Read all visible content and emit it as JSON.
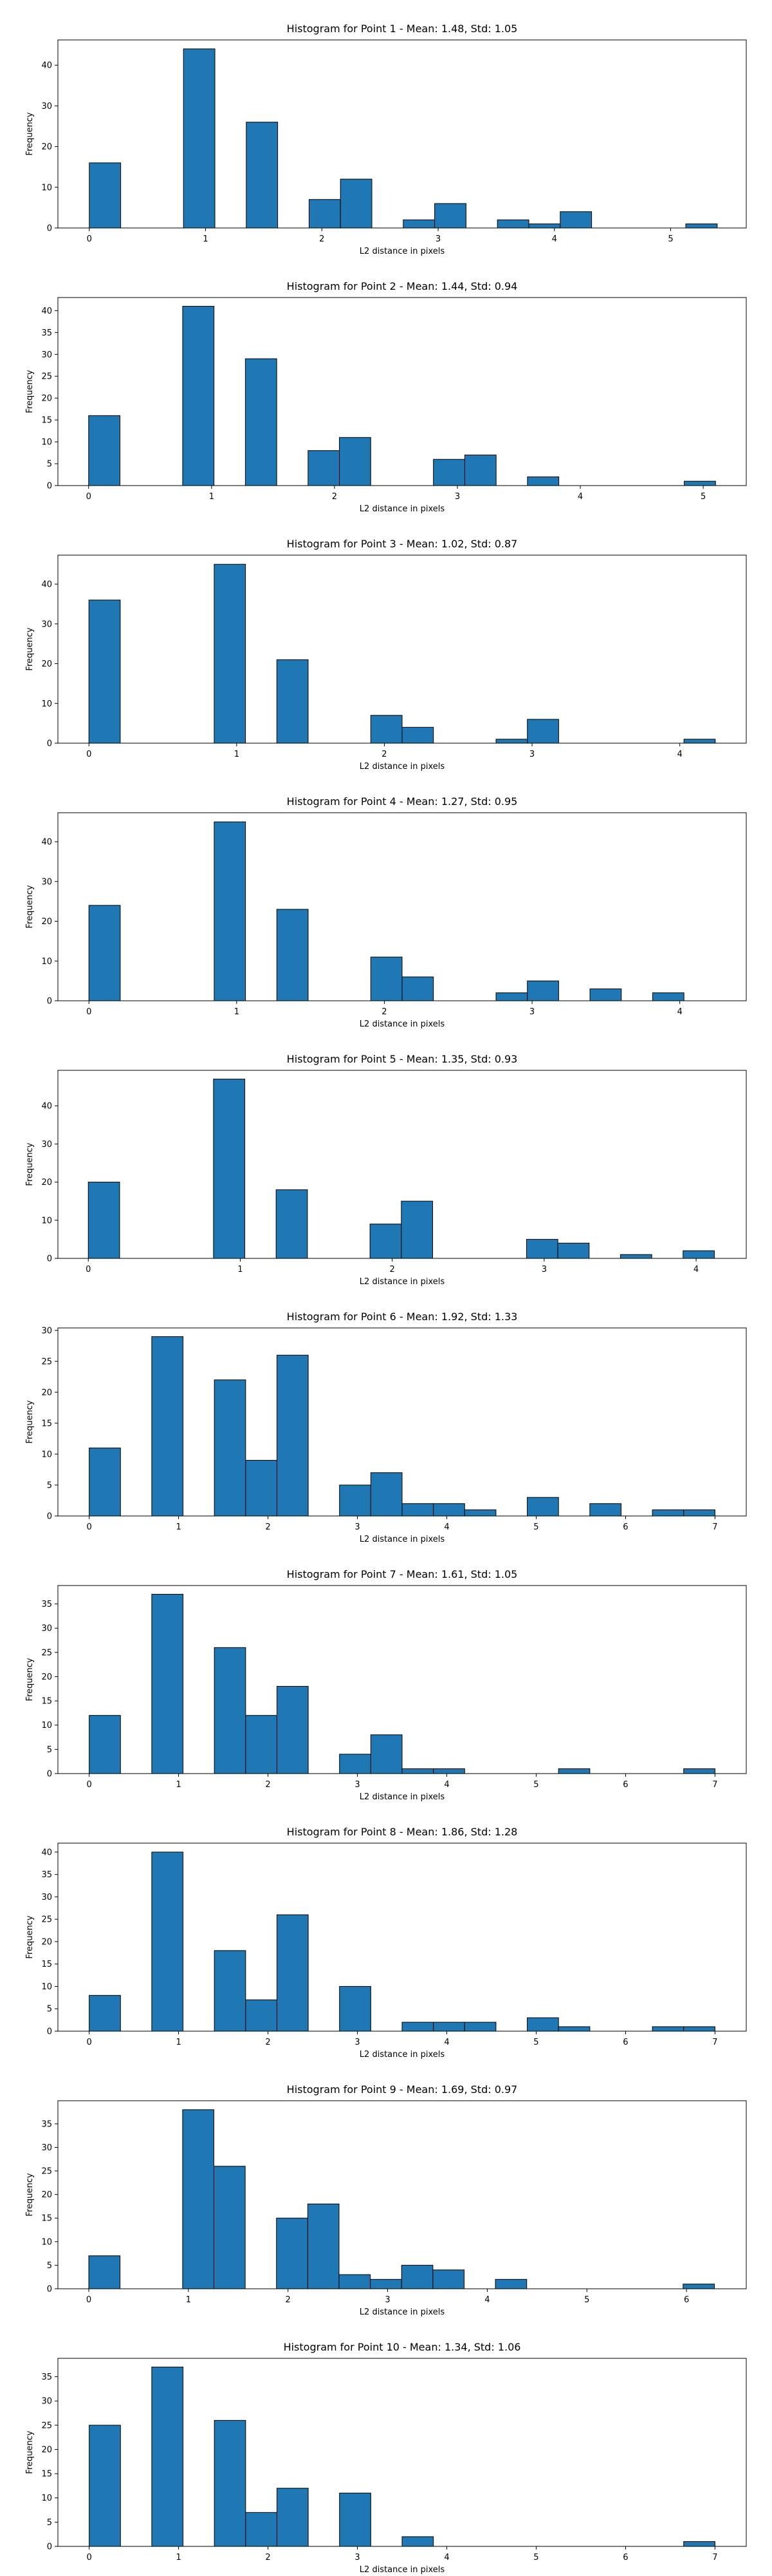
{
  "chart_data": [
    {
      "type": "bar",
      "title": "Histogram for Point 1 - Mean: 1.48, Std: 1.05",
      "xlabel": "L2 distance in pixels",
      "ylabel": "Frequency",
      "xlim": [
        -0.27,
        5.65
      ],
      "ylim": [
        0,
        46.2
      ],
      "xticks": [
        0,
        1,
        2,
        3,
        4,
        5
      ],
      "yticks": [
        0,
        10,
        20,
        30,
        40
      ],
      "grid": false,
      "bin_width": 0.27,
      "bins": [
        {
          "x0": 0.0,
          "count": 16
        },
        {
          "x0": 0.81,
          "count": 44
        },
        {
          "x0": 1.35,
          "count": 26
        },
        {
          "x0": 1.89,
          "count": 7
        },
        {
          "x0": 2.16,
          "count": 12
        },
        {
          "x0": 2.7,
          "count": 2
        },
        {
          "x0": 2.97,
          "count": 6
        },
        {
          "x0": 3.51,
          "count": 2
        },
        {
          "x0": 3.78,
          "count": 1
        },
        {
          "x0": 4.05,
          "count": 4
        },
        {
          "x0": 5.13,
          "count": 1
        }
      ]
    },
    {
      "type": "bar",
      "title": "Histogram for Point 2 - Mean: 1.44, Std: 0.94",
      "xlabel": "L2 distance in pixels",
      "ylabel": "Frequency",
      "xlim": [
        -0.25,
        5.35
      ],
      "ylim": [
        0,
        43
      ],
      "xticks": [
        0,
        1,
        2,
        3,
        4,
        5
      ],
      "yticks": [
        0,
        5,
        10,
        15,
        20,
        25,
        30,
        35,
        40
      ],
      "grid": false,
      "bin_width": 0.255,
      "bins": [
        {
          "x0": 0.0,
          "count": 16
        },
        {
          "x0": 0.765,
          "count": 41
        },
        {
          "x0": 1.275,
          "count": 29
        },
        {
          "x0": 1.785,
          "count": 8
        },
        {
          "x0": 2.04,
          "count": 11
        },
        {
          "x0": 2.805,
          "count": 6
        },
        {
          "x0": 3.06,
          "count": 7
        },
        {
          "x0": 3.57,
          "count": 2
        },
        {
          "x0": 4.845,
          "count": 1
        }
      ]
    },
    {
      "type": "bar",
      "title": "Histogram for Point 3 - Mean: 1.02, Std: 0.87",
      "xlabel": "L2 distance in pixels",
      "ylabel": "Frequency",
      "xlim": [
        -0.21,
        4.45
      ],
      "ylim": [
        0,
        47.3
      ],
      "xticks": [
        0,
        1,
        2,
        3,
        4
      ],
      "yticks": [
        0,
        10,
        20,
        30,
        40
      ],
      "grid": false,
      "bin_width": 0.212,
      "bins": [
        {
          "x0": 0.0,
          "count": 36
        },
        {
          "x0": 0.848,
          "count": 45
        },
        {
          "x0": 1.272,
          "count": 21
        },
        {
          "x0": 1.908,
          "count": 7
        },
        {
          "x0": 2.12,
          "count": 4
        },
        {
          "x0": 2.756,
          "count": 1
        },
        {
          "x0": 2.968,
          "count": 6
        },
        {
          "x0": 4.028,
          "count": 1
        }
      ]
    },
    {
      "type": "bar",
      "title": "Histogram for Point 4 - Mean: 1.27, Std: 0.95",
      "xlabel": "L2 distance in pixels",
      "ylabel": "Frequency",
      "xlim": [
        -0.21,
        4.45
      ],
      "ylim": [
        0,
        47.3
      ],
      "xticks": [
        0,
        1,
        2,
        3,
        4
      ],
      "yticks": [
        0,
        10,
        20,
        30,
        40
      ],
      "grid": false,
      "bin_width": 0.212,
      "bins": [
        {
          "x0": 0.0,
          "count": 24
        },
        {
          "x0": 0.848,
          "count": 45
        },
        {
          "x0": 1.272,
          "count": 23
        },
        {
          "x0": 1.908,
          "count": 11
        },
        {
          "x0": 2.12,
          "count": 6
        },
        {
          "x0": 2.756,
          "count": 2
        },
        {
          "x0": 2.968,
          "count": 5
        },
        {
          "x0": 3.392,
          "count": 3
        },
        {
          "x0": 3.816,
          "count": 2
        }
      ]
    },
    {
      "type": "bar",
      "title": "Histogram for Point 5 - Mean: 1.35, Std: 0.93",
      "xlabel": "L2 distance in pixels",
      "ylabel": "Frequency",
      "xlim": [
        -0.2,
        4.33
      ],
      "ylim": [
        0,
        49.3
      ],
      "xticks": [
        0,
        1,
        2,
        3,
        4
      ],
      "yticks": [
        0,
        10,
        20,
        30,
        40
      ],
      "grid": false,
      "bin_width": 0.206,
      "bins": [
        {
          "x0": 0.0,
          "count": 20
        },
        {
          "x0": 0.824,
          "count": 47
        },
        {
          "x0": 1.236,
          "count": 18
        },
        {
          "x0": 1.854,
          "count": 9
        },
        {
          "x0": 2.06,
          "count": 15
        },
        {
          "x0": 2.884,
          "count": 5
        },
        {
          "x0": 3.09,
          "count": 4
        },
        {
          "x0": 3.502,
          "count": 1
        },
        {
          "x0": 3.914,
          "count": 2
        }
      ]
    },
    {
      "type": "bar",
      "title": "Histogram for Point 6 - Mean: 1.92, Std: 1.33",
      "xlabel": "L2 distance in pixels",
      "ylabel": "Frequency",
      "xlim": [
        -0.35,
        7.35
      ],
      "ylim": [
        0,
        30.4
      ],
      "xticks": [
        0,
        1,
        2,
        3,
        4,
        5,
        6,
        7
      ],
      "yticks": [
        0,
        5,
        10,
        15,
        20,
        25,
        30
      ],
      "grid": false,
      "bin_width": 0.35,
      "bins": [
        {
          "x0": 0.0,
          "count": 11
        },
        {
          "x0": 0.7,
          "count": 29
        },
        {
          "x0": 1.4,
          "count": 22
        },
        {
          "x0": 1.75,
          "count": 9
        },
        {
          "x0": 2.1,
          "count": 26
        },
        {
          "x0": 2.8,
          "count": 5
        },
        {
          "x0": 3.15,
          "count": 7
        },
        {
          "x0": 3.5,
          "count": 2
        },
        {
          "x0": 3.85,
          "count": 2
        },
        {
          "x0": 4.2,
          "count": 1
        },
        {
          "x0": 4.9,
          "count": 3
        },
        {
          "x0": 5.6,
          "count": 2
        },
        {
          "x0": 6.3,
          "count": 1
        },
        {
          "x0": 6.65,
          "count": 1
        }
      ]
    },
    {
      "type": "bar",
      "title": "Histogram for Point 7 - Mean: 1.61, Std: 1.05",
      "xlabel": "L2 distance in pixels",
      "ylabel": "Frequency",
      "xlim": [
        -0.35,
        7.35
      ],
      "ylim": [
        0,
        38.8
      ],
      "xticks": [
        0,
        1,
        2,
        3,
        4,
        5,
        6,
        7
      ],
      "yticks": [
        0,
        5,
        10,
        15,
        20,
        25,
        30,
        35
      ],
      "grid": false,
      "bin_width": 0.35,
      "bins": [
        {
          "x0": 0.0,
          "count": 12
        },
        {
          "x0": 0.7,
          "count": 37
        },
        {
          "x0": 1.4,
          "count": 26
        },
        {
          "x0": 1.75,
          "count": 12
        },
        {
          "x0": 2.1,
          "count": 18
        },
        {
          "x0": 2.8,
          "count": 4
        },
        {
          "x0": 3.15,
          "count": 8
        },
        {
          "x0": 3.5,
          "count": 1
        },
        {
          "x0": 3.85,
          "count": 1
        },
        {
          "x0": 5.25,
          "count": 1
        },
        {
          "x0": 6.65,
          "count": 1
        }
      ]
    },
    {
      "type": "bar",
      "title": "Histogram for Point 8 - Mean: 1.86, Std: 1.28",
      "xlabel": "L2 distance in pixels",
      "ylabel": "Frequency",
      "xlim": [
        -0.35,
        7.35
      ],
      "ylim": [
        0,
        42
      ],
      "xticks": [
        0,
        1,
        2,
        3,
        4,
        5,
        6,
        7
      ],
      "yticks": [
        0,
        5,
        10,
        15,
        20,
        25,
        30,
        35,
        40
      ],
      "grid": false,
      "bin_width": 0.35,
      "bins": [
        {
          "x0": 0.0,
          "count": 8
        },
        {
          "x0": 0.7,
          "count": 40
        },
        {
          "x0": 1.4,
          "count": 18
        },
        {
          "x0": 1.75,
          "count": 7
        },
        {
          "x0": 2.1,
          "count": 26
        },
        {
          "x0": 2.8,
          "count": 10
        },
        {
          "x0": 3.5,
          "count": 2
        },
        {
          "x0": 3.85,
          "count": 2
        },
        {
          "x0": 4.2,
          "count": 2
        },
        {
          "x0": 4.9,
          "count": 3
        },
        {
          "x0": 5.25,
          "count": 1
        },
        {
          "x0": 6.3,
          "count": 1
        },
        {
          "x0": 6.65,
          "count": 1
        }
      ]
    },
    {
      "type": "bar",
      "title": "Histogram for Point 9 - Mean: 1.69, Std: 0.97",
      "xlabel": "L2 distance in pixels",
      "ylabel": "Frequency",
      "xlim": [
        -0.31,
        6.6
      ],
      "ylim": [
        0,
        39.9
      ],
      "xticks": [
        0,
        1,
        2,
        3,
        4,
        5,
        6
      ],
      "yticks": [
        0,
        5,
        10,
        15,
        20,
        25,
        30,
        35
      ],
      "grid": false,
      "bin_width": 0.314,
      "bins": [
        {
          "x0": 0.0,
          "count": 7
        },
        {
          "x0": 0.942,
          "count": 38
        },
        {
          "x0": 1.256,
          "count": 26
        },
        {
          "x0": 1.884,
          "count": 15
        },
        {
          "x0": 2.198,
          "count": 18
        },
        {
          "x0": 2.512,
          "count": 3
        },
        {
          "x0": 2.826,
          "count": 2
        },
        {
          "x0": 3.14,
          "count": 5
        },
        {
          "x0": 3.454,
          "count": 4
        },
        {
          "x0": 4.082,
          "count": 2
        },
        {
          "x0": 5.966,
          "count": 1
        }
      ]
    },
    {
      "type": "bar",
      "title": "Histogram for Point 10 - Mean: 1.34, Std: 1.06",
      "xlabel": "L2 distance in pixels",
      "ylabel": "Frequency",
      "xlim": [
        -0.35,
        7.35
      ],
      "ylim": [
        0,
        38.8
      ],
      "xticks": [
        0,
        1,
        2,
        3,
        4,
        5,
        6,
        7
      ],
      "yticks": [
        0,
        5,
        10,
        15,
        20,
        25,
        30,
        35
      ],
      "grid": false,
      "bin_width": 0.35,
      "bins": [
        {
          "x0": 0.0,
          "count": 25
        },
        {
          "x0": 0.7,
          "count": 37
        },
        {
          "x0": 1.4,
          "count": 26
        },
        {
          "x0": 1.75,
          "count": 7
        },
        {
          "x0": 2.1,
          "count": 12
        },
        {
          "x0": 2.8,
          "count": 11
        },
        {
          "x0": 3.5,
          "count": 2
        },
        {
          "x0": 6.65,
          "count": 1
        }
      ]
    }
  ],
  "style": {
    "bar_color": "#1f77b4",
    "edge_color": "#000000",
    "background": "#ffffff"
  }
}
